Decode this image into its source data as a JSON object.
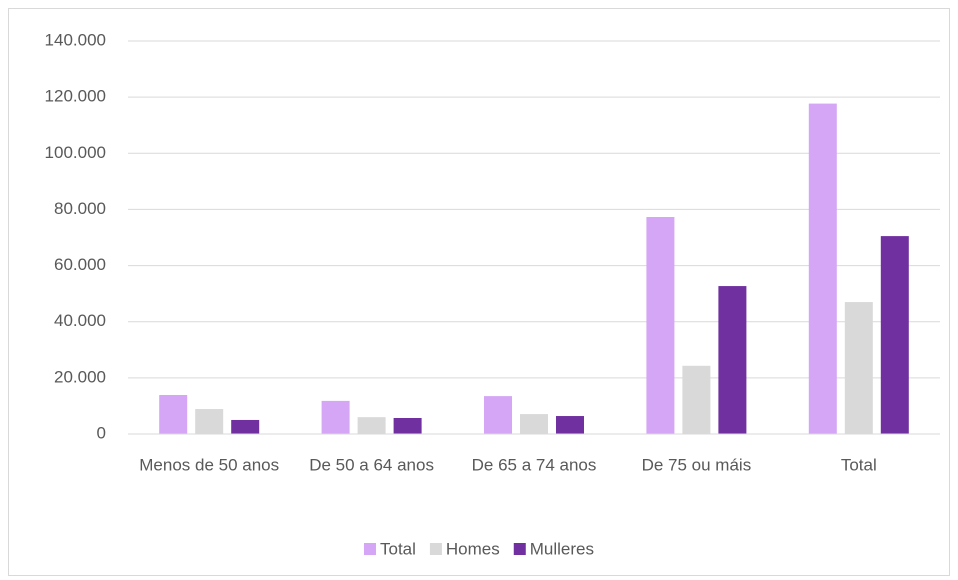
{
  "chart_data": {
    "type": "bar",
    "categories": [
      "Menos de 50 anos",
      "De 50 a 64 anos",
      "De 65 a 74 anos",
      "De 75 ou máis",
      "Total"
    ],
    "series": [
      {
        "name": "Total",
        "color": "#d5a6f5",
        "values": [
          13900,
          11800,
          13500,
          77300,
          117700
        ]
      },
      {
        "name": "Homes",
        "color": "#d9d9d9",
        "values": [
          8900,
          6000,
          7100,
          24300,
          47000
        ]
      },
      {
        "name": "Mulleres",
        "color": "#7030a0",
        "values": [
          5000,
          5700,
          6400,
          52700,
          70500
        ]
      }
    ],
    "ylim": [
      0,
      140000
    ],
    "yticks": [
      0,
      {
        "value": 20000,
        "label": "20.000"
      },
      {
        "value": 40000,
        "label": "40.000"
      },
      {
        "value": 60000,
        "label": "60.000"
      },
      {
        "value": 80000,
        "label": "80.000"
      },
      {
        "value": 100000,
        "label": "100.000"
      },
      {
        "value": 120000,
        "label": "120.000"
      },
      {
        "value": 140000,
        "label": "140.000"
      }
    ],
    "grid": true,
    "legend": "bottom"
  }
}
